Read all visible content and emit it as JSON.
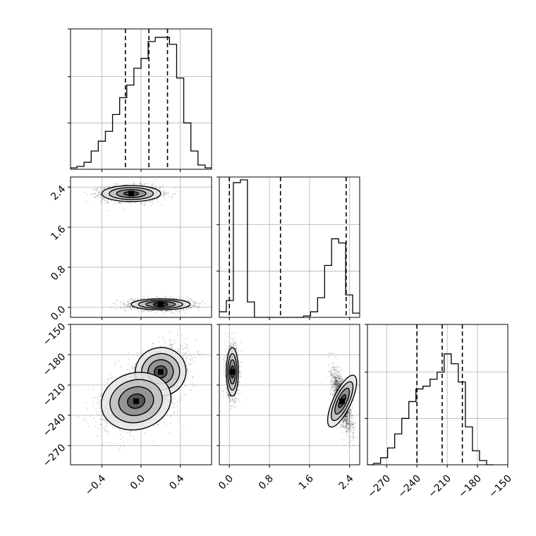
{
  "chart_data": {
    "type": "corner",
    "grid": true,
    "parameters": [
      {
        "range": [
          -0.72,
          0.72
        ],
        "ticks": [
          -0.4,
          0.0,
          0.4
        ],
        "tick_labels": [
          "−0.4",
          "0.0",
          "0.4"
        ],
        "quantiles": [
          -0.16,
          0.08,
          0.27
        ]
      },
      {
        "range": [
          -0.2,
          2.6
        ],
        "ticks": [
          0.0,
          0.8,
          1.6,
          2.4
        ],
        "tick_labels": [
          "0.0",
          "0.8",
          "1.6",
          "2.4"
        ],
        "quantiles": [
          0.0,
          1.02,
          2.33
        ]
      },
      {
        "range": [
          -289,
          -150
        ],
        "ticks": [
          -270,
          -240,
          -210,
          -180,
          -150
        ],
        "tick_labels": [
          "−270",
          "−240",
          "−210",
          "−180",
          "−150"
        ],
        "quantiles": [
          -240,
          -215,
          -195
        ]
      }
    ],
    "histograms": [
      {
        "edges_from": -0.8,
        "bin_width": 0.0727,
        "counts": [
          0,
          0.01,
          0.02,
          0.05,
          0.13,
          0.2,
          0.27,
          0.39,
          0.51,
          0.6,
          0.72,
          0.79,
          0.91,
          0.94,
          0.94,
          0.89,
          0.65,
          0.33,
          0.13,
          0.03,
          0.01,
          0.0
        ]
      },
      {
        "edges_from": -0.2,
        "bin_width": 0.14,
        "counts": [
          0.04,
          0.12,
          0.96,
          0.98,
          0.11,
          0,
          0,
          0,
          0,
          0,
          0,
          0,
          0.01,
          0.04,
          0.14,
          0.37,
          0.56,
          0.53,
          0.16,
          0.03
        ]
      },
      {
        "edges_from": -290,
        "bin_width": 7.0,
        "counts": [
          0.0,
          0.01,
          0.05,
          0.12,
          0.22,
          0.33,
          0.45,
          0.54,
          0.56,
          0.61,
          0.66,
          0.79,
          0.72,
          0.59,
          0.27,
          0.1,
          0.03,
          0.0
        ]
      }
    ],
    "scatter_clusters": {
      "p1_p0": [
        {
          "center": [
            -0.1,
            2.27
          ],
          "spread": [
            0.15,
            0.08
          ],
          "weight": 0.5
        },
        {
          "center": [
            0.2,
            0.06
          ],
          "spread": [
            0.15,
            0.055
          ],
          "weight": 0.5
        }
      ],
      "p2_p0": [
        {
          "center": [
            0.2,
            -197
          ],
          "spread": [
            0.13,
            12
          ],
          "weight": 0.5
        },
        {
          "center": [
            -0.05,
            -226
          ],
          "spread": [
            0.18,
            14
          ],
          "weight": 0.5
        }
      ],
      "p2_p1": [
        {
          "center": [
            0.06,
            -197
          ],
          "spread": [
            0.06,
            12
          ],
          "weight": 0.5
        },
        {
          "center": [
            2.25,
            -226
          ],
          "spread": [
            0.09,
            14
          ],
          "weight": 0.5
        }
      ]
    }
  }
}
